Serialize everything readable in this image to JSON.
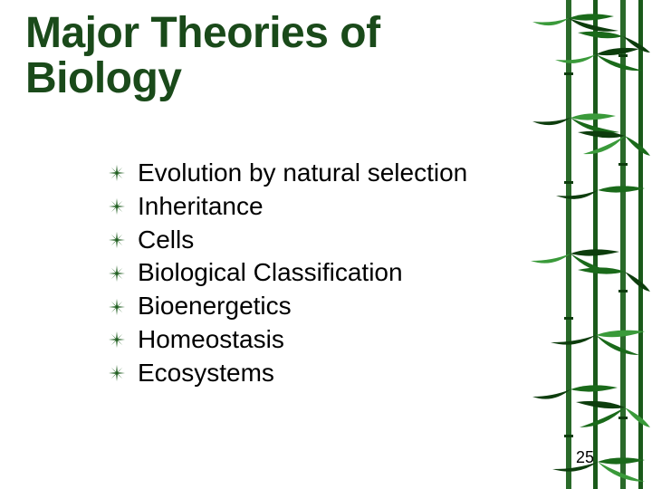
{
  "title": {
    "line1": "Major Theories of",
    "line2": "Biology",
    "color": "#1a4a1a",
    "fontsize": 48
  },
  "bullets": {
    "fontsize": 28,
    "text_color": "#000000",
    "icon_color": "#1a5a1a",
    "items": [
      "Evolution by natural selection",
      "Inheritance",
      "Cells",
      "Biological Classification",
      "Bioenergetics",
      "Homeostasis",
      "Ecosystems"
    ]
  },
  "page_number": {
    "value": "25",
    "fontsize": 18,
    "color": "#000000"
  },
  "bamboo": {
    "stem_color": "#2a6a2a",
    "leaf_dark": "#0d3d0d",
    "leaf_mid": "#1a6a1a",
    "leaf_light": "#3a9a3a",
    "background": "#ffffff"
  },
  "slide_background": "#ffffff"
}
